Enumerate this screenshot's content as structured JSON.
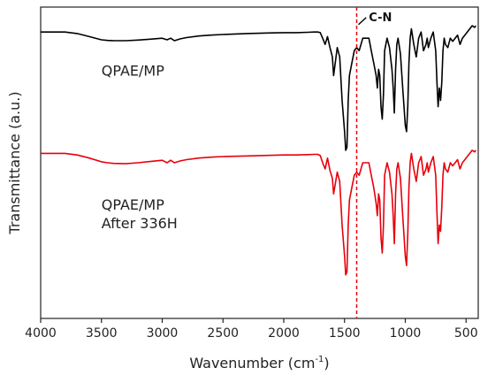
{
  "chart_data": {
    "type": "line",
    "xlabel_main": "Wavenumber (cm",
    "xlabel_sup": "-1",
    "xlabel_end": ")",
    "ylabel": "Transmittance (a.u.)",
    "xlim": [
      4000,
      400
    ],
    "ylim": [
      0,
      1
    ],
    "x_reversed": true,
    "y_ticks_shown": false,
    "x_ticks": [
      4000,
      3500,
      3000,
      2500,
      2000,
      1500,
      1000,
      500
    ],
    "x_tick_labels": [
      "4000",
      "3500",
      "3000",
      "2500",
      "2000",
      "1500",
      "1000",
      "500"
    ],
    "grid": false,
    "marker_line": {
      "x": 1400,
      "color": "#e8000b",
      "style": "dashed"
    },
    "annotations": [
      {
        "text": "C-N",
        "x": 1300,
        "y": 0.955,
        "bold": true
      },
      {
        "text": "QPAE/MP",
        "x": 3500,
        "y": 0.78
      },
      {
        "text": "QPAE/MP",
        "x": 3500,
        "y": 0.35
      },
      {
        "text": "After 336H",
        "x": 3500,
        "y": 0.29
      }
    ],
    "series": [
      {
        "color": "#000000",
        "x": [
          4000,
          3800,
          3700,
          3600,
          3500,
          3450,
          3400,
          3300,
          3200,
          3100,
          3000,
          2960,
          2930,
          2900,
          2850,
          2800,
          2700,
          2600,
          2500,
          2300,
          2100,
          2000,
          1900,
          1800,
          1750,
          1720,
          1700,
          1680,
          1660,
          1640,
          1620,
          1600,
          1590,
          1560,
          1540,
          1520,
          1500,
          1490,
          1480,
          1470,
          1460,
          1440,
          1420,
          1400,
          1380,
          1350,
          1300,
          1280,
          1260,
          1240,
          1230,
          1220,
          1210,
          1200,
          1190,
          1180,
          1170,
          1160,
          1150,
          1130,
          1110,
          1100,
          1090,
          1080,
          1070,
          1060,
          1040,
          1020,
          1000,
          990,
          980,
          970,
          960,
          950,
          930,
          910,
          890,
          870,
          850,
          830,
          820,
          810,
          790,
          770,
          750,
          740,
          730,
          720,
          710,
          700,
          690,
          680,
          670,
          650,
          630,
          610,
          590,
          570,
          550,
          530,
          510,
          490,
          470,
          450,
          430,
          420
        ],
        "y": [
          0.92,
          0.92,
          0.915,
          0.905,
          0.895,
          0.893,
          0.892,
          0.892,
          0.894,
          0.897,
          0.9,
          0.895,
          0.9,
          0.892,
          0.898,
          0.902,
          0.907,
          0.91,
          0.912,
          0.915,
          0.917,
          0.918,
          0.918,
          0.919,
          0.92,
          0.92,
          0.918,
          0.9,
          0.88,
          0.905,
          0.87,
          0.84,
          0.78,
          0.87,
          0.84,
          0.7,
          0.6,
          0.54,
          0.55,
          0.7,
          0.78,
          0.82,
          0.86,
          0.87,
          0.86,
          0.9,
          0.9,
          0.86,
          0.82,
          0.78,
          0.74,
          0.8,
          0.78,
          0.68,
          0.64,
          0.72,
          0.86,
          0.88,
          0.9,
          0.87,
          0.8,
          0.74,
          0.66,
          0.8,
          0.88,
          0.9,
          0.85,
          0.73,
          0.62,
          0.6,
          0.68,
          0.82,
          0.9,
          0.93,
          0.88,
          0.84,
          0.9,
          0.92,
          0.86,
          0.88,
          0.9,
          0.87,
          0.9,
          0.92,
          0.86,
          0.76,
          0.68,
          0.74,
          0.7,
          0.76,
          0.86,
          0.9,
          0.88,
          0.87,
          0.9,
          0.89,
          0.9,
          0.91,
          0.88,
          0.9,
          0.91,
          0.92,
          0.93,
          0.94,
          0.935,
          0.94
        ]
      },
      {
        "color": "#e8000b",
        "x": [
          4000,
          3800,
          3700,
          3600,
          3500,
          3450,
          3400,
          3300,
          3200,
          3100,
          3000,
          2960,
          2930,
          2900,
          2850,
          2800,
          2700,
          2600,
          2500,
          2300,
          2100,
          2000,
          1900,
          1800,
          1750,
          1720,
          1700,
          1680,
          1660,
          1640,
          1620,
          1600,
          1590,
          1560,
          1540,
          1520,
          1500,
          1490,
          1480,
          1470,
          1460,
          1440,
          1420,
          1400,
          1380,
          1350,
          1300,
          1280,
          1260,
          1240,
          1230,
          1220,
          1210,
          1200,
          1190,
          1180,
          1170,
          1160,
          1150,
          1130,
          1110,
          1100,
          1090,
          1080,
          1070,
          1060,
          1040,
          1020,
          1000,
          990,
          980,
          970,
          960,
          950,
          930,
          910,
          890,
          870,
          850,
          830,
          820,
          810,
          790,
          770,
          750,
          740,
          730,
          720,
          710,
          700,
          690,
          680,
          670,
          650,
          630,
          610,
          590,
          570,
          550,
          530,
          510,
          490,
          470,
          450,
          430,
          420
        ],
        "y": [
          0.53,
          0.53,
          0.525,
          0.515,
          0.503,
          0.5,
          0.498,
          0.497,
          0.5,
          0.504,
          0.508,
          0.5,
          0.508,
          0.5,
          0.506,
          0.51,
          0.515,
          0.518,
          0.52,
          0.522,
          0.524,
          0.525,
          0.525,
          0.526,
          0.527,
          0.527,
          0.523,
          0.5,
          0.48,
          0.515,
          0.475,
          0.45,
          0.4,
          0.47,
          0.44,
          0.3,
          0.2,
          0.14,
          0.15,
          0.3,
          0.38,
          0.42,
          0.46,
          0.47,
          0.46,
          0.5,
          0.5,
          0.46,
          0.42,
          0.37,
          0.33,
          0.4,
          0.38,
          0.26,
          0.21,
          0.3,
          0.46,
          0.48,
          0.5,
          0.47,
          0.4,
          0.33,
          0.24,
          0.4,
          0.48,
          0.5,
          0.45,
          0.32,
          0.2,
          0.17,
          0.27,
          0.42,
          0.5,
          0.53,
          0.48,
          0.44,
          0.5,
          0.52,
          0.46,
          0.48,
          0.5,
          0.47,
          0.5,
          0.52,
          0.46,
          0.34,
          0.24,
          0.3,
          0.28,
          0.36,
          0.46,
          0.5,
          0.48,
          0.47,
          0.5,
          0.49,
          0.5,
          0.51,
          0.48,
          0.5,
          0.51,
          0.52,
          0.53,
          0.54,
          0.535,
          0.54
        ]
      }
    ]
  }
}
